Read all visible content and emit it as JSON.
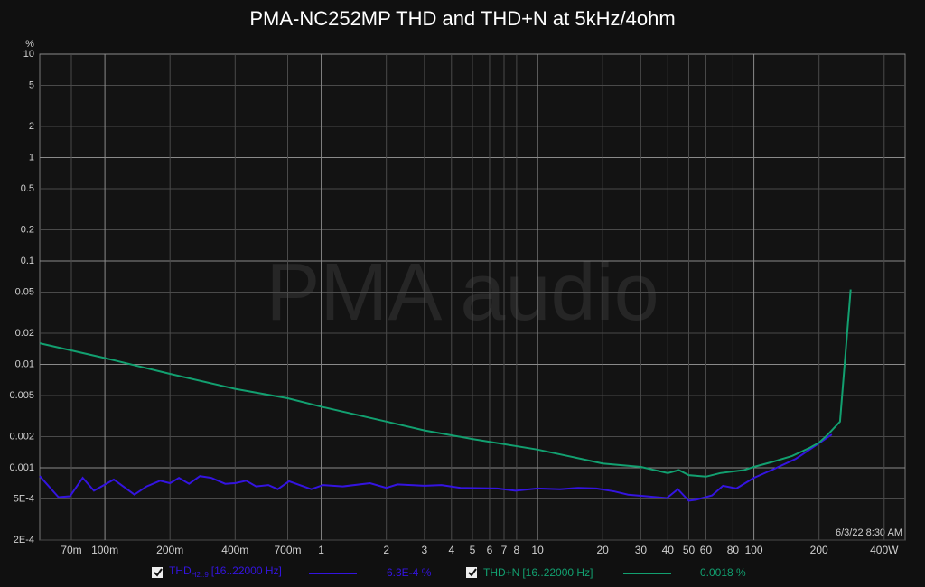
{
  "chart_data": {
    "type": "line",
    "title": "PMA-NC252MP THD and THD+N at 5kHz/4ohm",
    "ylabel": "%",
    "watermark": "PMA audio",
    "timestamp": "6/3/22 8:30 AM",
    "xscale": "log",
    "yscale": "log",
    "grid": true,
    "xlim": [
      0.05,
      500
    ],
    "ylim": [
      0.0002,
      10
    ],
    "yticks": [
      10,
      5,
      2,
      1,
      0.5,
      0.2,
      0.1,
      0.05,
      0.02,
      0.01,
      0.005,
      0.002,
      0.001,
      {
        "value": 0.0005,
        "label": "5E-4"
      },
      {
        "value": 0.0002,
        "label": "2E-4"
      }
    ],
    "xticks": [
      {
        "value": 0.07,
        "label": "70m"
      },
      {
        "value": 0.1,
        "label": "100m"
      },
      {
        "value": 0.2,
        "label": "200m"
      },
      {
        "value": 0.4,
        "label": "400m"
      },
      {
        "value": 0.7,
        "label": "700m"
      },
      1,
      2,
      3,
      4,
      5,
      6,
      7,
      8,
      10,
      20,
      30,
      40,
      50,
      60,
      80,
      100,
      200,
      {
        "value": 400,
        "label": "400W"
      }
    ],
    "series": [
      {
        "name": "THD",
        "name_sub": "H2..9",
        "band": "[16..22000 Hz]",
        "readout": "6.3E-4 %",
        "color": "#3414e0",
        "x": [
          0.05,
          0.061,
          0.069,
          0.079,
          0.089,
          0.11,
          0.137,
          0.156,
          0.18,
          0.2,
          0.22,
          0.245,
          0.275,
          0.31,
          0.36,
          0.4,
          0.45,
          0.5,
          0.57,
          0.63,
          0.71,
          0.9,
          1.02,
          1.26,
          1.68,
          2,
          2.25,
          3,
          3.6,
          4.4,
          6.5,
          7.9,
          10,
          12.7,
          15.4,
          18.7,
          22.7,
          26.2,
          31.8,
          39.6,
          44.5,
          50,
          54,
          64,
          72,
          83,
          100,
          122,
          156,
          198,
          229
        ],
        "values": [
          0.00083,
          0.00052,
          0.00053,
          0.0008,
          0.0006,
          0.00077,
          0.00055,
          0.00066,
          0.00075,
          0.00071,
          0.0008,
          0.0007,
          0.00083,
          0.0008,
          0.0007,
          0.00071,
          0.00075,
          0.00066,
          0.00068,
          0.00062,
          0.00074,
          0.00062,
          0.00068,
          0.00066,
          0.00071,
          0.00064,
          0.00069,
          0.00067,
          0.00068,
          0.00064,
          0.00063,
          0.0006,
          0.00063,
          0.00062,
          0.00064,
          0.00063,
          0.00059,
          0.00055,
          0.00053,
          0.00051,
          0.00062,
          0.00048,
          0.00049,
          0.00054,
          0.00067,
          0.00063,
          0.0008,
          0.00096,
          0.00122,
          0.0017,
          0.0021
        ]
      },
      {
        "name": "THD+N",
        "band": "[16..22000 Hz]",
        "readout": "0.0018 %",
        "color": "#12a070",
        "x": [
          0.05,
          0.1,
          0.2,
          0.4,
          0.7,
          1,
          2,
          3,
          5,
          10,
          20,
          30,
          40,
          45,
          50,
          60,
          70,
          90,
          100,
          120,
          150,
          180,
          200,
          220,
          250,
          280
        ],
        "values": [
          0.016,
          0.0115,
          0.0081,
          0.0058,
          0.0047,
          0.0039,
          0.0028,
          0.0023,
          0.0019,
          0.0015,
          0.0011,
          0.00102,
          0.00089,
          0.00095,
          0.00085,
          0.00082,
          0.00089,
          0.00095,
          0.00102,
          0.00113,
          0.0013,
          0.00155,
          0.00175,
          0.0021,
          0.0028,
          0.053
        ]
      }
    ]
  }
}
